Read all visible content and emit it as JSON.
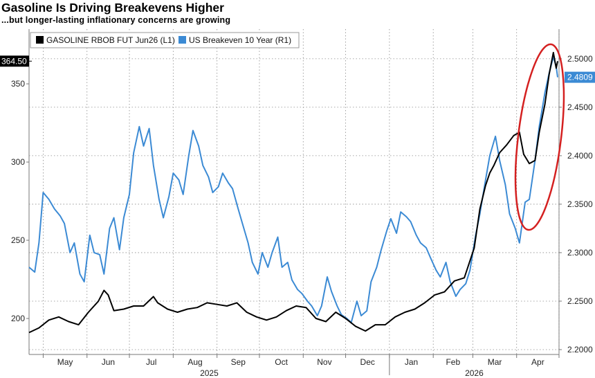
{
  "title": "Gasoline Is Driving Breakevens Higher",
  "subtitle": "...but longer-lasting inflationary concerns are growing",
  "colors": {
    "gasoline": "#000000",
    "breakeven": "#3b8ad4",
    "highlight_circle": "#d42020",
    "grid": "#8a8a8a"
  },
  "legend": {
    "gasoline_label": "GASOLINE RBOB FUT Jun26  (L1)",
    "breakeven_label": "US Breakeven 10 Year  (R1)"
  },
  "value_tags": {
    "gasoline_last": "364.50",
    "breakeven_last": "2.4809"
  },
  "x_axis": {
    "months": [
      "May",
      "Jun",
      "Jul",
      "Aug",
      "Sep",
      "Oct",
      "Nov",
      "Dec",
      "Jan",
      "Feb",
      "Mar",
      "Apr"
    ],
    "years": [
      "2025",
      "2026"
    ]
  },
  "chart_data": {
    "type": "line",
    "title": "Gasoline Is Driving Breakevens Higher",
    "subtitle": "...but longer-lasting inflationary concerns are growing",
    "x_range": [
      "2025-04-21",
      "2026-05-01"
    ],
    "grid": true,
    "legend_position": "top-left",
    "left_axis": {
      "ylim": [
        177,
        385
      ],
      "ticks": [
        200,
        250,
        300,
        350
      ]
    },
    "right_axis": {
      "ylim": [
        2.195,
        2.5306
      ],
      "ticks": [
        "2.2000",
        "2.2500",
        "2.3000",
        "2.3500",
        "2.4000",
        "2.4500",
        "2.5000"
      ]
    },
    "series": [
      {
        "name": "GASOLINE RBOB FUT Jun26",
        "axis": "left",
        "points": [
          [
            "2025-04-21",
            191
          ],
          [
            "2025-04-28",
            194
          ],
          [
            "2025-05-05",
            199
          ],
          [
            "2025-05-12",
            201
          ],
          [
            "2025-05-19",
            198
          ],
          [
            "2025-05-26",
            196
          ],
          [
            "2025-06-02",
            204
          ],
          [
            "2025-06-09",
            211
          ],
          [
            "2025-06-13",
            218
          ],
          [
            "2025-06-16",
            215
          ],
          [
            "2025-06-20",
            205
          ],
          [
            "2025-06-27",
            206
          ],
          [
            "2025-07-04",
            208
          ],
          [
            "2025-07-11",
            208
          ],
          [
            "2025-07-18",
            214
          ],
          [
            "2025-07-21",
            210
          ],
          [
            "2025-07-28",
            206
          ],
          [
            "2025-08-04",
            204
          ],
          [
            "2025-08-11",
            206
          ],
          [
            "2025-08-18",
            207
          ],
          [
            "2025-08-25",
            210
          ],
          [
            "2025-09-01",
            209
          ],
          [
            "2025-09-08",
            208
          ],
          [
            "2025-09-15",
            210
          ],
          [
            "2025-09-22",
            204
          ],
          [
            "2025-09-29",
            201
          ],
          [
            "2025-10-06",
            199
          ],
          [
            "2025-10-13",
            201
          ],
          [
            "2025-10-20",
            205
          ],
          [
            "2025-10-27",
            208
          ],
          [
            "2025-11-03",
            207
          ],
          [
            "2025-11-10",
            200
          ],
          [
            "2025-11-17",
            198
          ],
          [
            "2025-11-24",
            204
          ],
          [
            "2025-12-01",
            200
          ],
          [
            "2025-12-08",
            195
          ],
          [
            "2025-12-15",
            192
          ],
          [
            "2025-12-22",
            196
          ],
          [
            "2025-12-29",
            196
          ],
          [
            "2026-01-05",
            201
          ],
          [
            "2026-01-12",
            204
          ],
          [
            "2026-01-19",
            206
          ],
          [
            "2026-01-26",
            210
          ],
          [
            "2026-02-02",
            215
          ],
          [
            "2026-02-09",
            217
          ],
          [
            "2026-02-16",
            224
          ],
          [
            "2026-02-23",
            226
          ],
          [
            "2026-03-02",
            245
          ],
          [
            "2026-03-06",
            270
          ],
          [
            "2026-03-10",
            285
          ],
          [
            "2026-03-13",
            293
          ],
          [
            "2026-03-16",
            298
          ],
          [
            "2026-03-20",
            306
          ],
          [
            "2026-03-25",
            311
          ],
          [
            "2026-03-30",
            317
          ],
          [
            "2026-04-03",
            319
          ],
          [
            "2026-04-06",
            305
          ],
          [
            "2026-04-10",
            299
          ],
          [
            "2026-04-14",
            301
          ],
          [
            "2026-04-17",
            319
          ],
          [
            "2026-04-21",
            337
          ],
          [
            "2026-04-24",
            356
          ],
          [
            "2026-04-27",
            370
          ],
          [
            "2026-04-29",
            360
          ],
          [
            "2026-04-30",
            364.5
          ]
        ]
      },
      {
        "name": "US Breakeven 10 Year",
        "axis": "right",
        "points": [
          [
            "2025-04-21",
            2.285
          ],
          [
            "2025-04-25",
            2.28
          ],
          [
            "2025-04-28",
            2.31
          ],
          [
            "2025-05-01",
            2.362
          ],
          [
            "2025-05-05",
            2.355
          ],
          [
            "2025-05-09",
            2.345
          ],
          [
            "2025-05-13",
            2.338
          ],
          [
            "2025-05-16",
            2.33
          ],
          [
            "2025-05-20",
            2.3
          ],
          [
            "2025-05-23",
            2.31
          ],
          [
            "2025-05-27",
            2.278
          ],
          [
            "2025-05-30",
            2.27
          ],
          [
            "2025-06-03",
            2.318
          ],
          [
            "2025-06-06",
            2.3
          ],
          [
            "2025-06-10",
            2.298
          ],
          [
            "2025-06-13",
            2.278
          ],
          [
            "2025-06-17",
            2.325
          ],
          [
            "2025-06-20",
            2.336
          ],
          [
            "2025-06-24",
            2.303
          ],
          [
            "2025-06-27",
            2.336
          ],
          [
            "2025-07-01",
            2.36
          ],
          [
            "2025-07-04",
            2.403
          ],
          [
            "2025-07-08",
            2.43
          ],
          [
            "2025-07-11",
            2.41
          ],
          [
            "2025-07-15",
            2.428
          ],
          [
            "2025-07-18",
            2.39
          ],
          [
            "2025-07-22",
            2.355
          ],
          [
            "2025-07-25",
            2.336
          ],
          [
            "2025-07-29",
            2.358
          ],
          [
            "2025-08-01",
            2.382
          ],
          [
            "2025-08-05",
            2.375
          ],
          [
            "2025-08-08",
            2.36
          ],
          [
            "2025-08-12",
            2.4
          ],
          [
            "2025-08-15",
            2.426
          ],
          [
            "2025-08-19",
            2.41
          ],
          [
            "2025-08-22",
            2.39
          ],
          [
            "2025-08-26",
            2.378
          ],
          [
            "2025-08-29",
            2.362
          ],
          [
            "2025-09-02",
            2.368
          ],
          [
            "2025-09-05",
            2.382
          ],
          [
            "2025-09-09",
            2.372
          ],
          [
            "2025-09-12",
            2.366
          ],
          [
            "2025-09-16",
            2.345
          ],
          [
            "2025-09-19",
            2.33
          ],
          [
            "2025-09-23",
            2.31
          ],
          [
            "2025-09-26",
            2.29
          ],
          [
            "2025-09-30",
            2.278
          ],
          [
            "2025-10-03",
            2.3
          ],
          [
            "2025-10-07",
            2.285
          ],
          [
            "2025-10-10",
            2.3
          ],
          [
            "2025-10-14",
            2.316
          ],
          [
            "2025-10-17",
            2.285
          ],
          [
            "2025-10-21",
            2.29
          ],
          [
            "2025-10-24",
            2.272
          ],
          [
            "2025-10-28",
            2.262
          ],
          [
            "2025-10-31",
            2.258
          ],
          [
            "2025-11-04",
            2.25
          ],
          [
            "2025-11-07",
            2.245
          ],
          [
            "2025-11-11",
            2.235
          ],
          [
            "2025-11-14",
            2.245
          ],
          [
            "2025-11-18",
            2.275
          ],
          [
            "2025-11-21",
            2.26
          ],
          [
            "2025-11-25",
            2.245
          ],
          [
            "2025-11-28",
            2.236
          ],
          [
            "2025-12-02",
            2.232
          ],
          [
            "2025-12-05",
            2.228
          ],
          [
            "2025-12-09",
            2.25
          ],
          [
            "2025-12-12",
            2.235
          ],
          [
            "2025-12-16",
            2.24
          ],
          [
            "2025-12-19",
            2.27
          ],
          [
            "2025-12-23",
            2.285
          ],
          [
            "2025-12-26",
            2.302
          ],
          [
            "2025-12-30",
            2.322
          ],
          [
            "2026-01-02",
            2.335
          ],
          [
            "2026-01-06",
            2.32
          ],
          [
            "2026-01-09",
            2.342
          ],
          [
            "2026-01-13",
            2.337
          ],
          [
            "2026-01-16",
            2.332
          ],
          [
            "2026-01-20",
            2.318
          ],
          [
            "2026-01-23",
            2.31
          ],
          [
            "2026-01-27",
            2.305
          ],
          [
            "2026-01-30",
            2.295
          ],
          [
            "2026-02-03",
            2.282
          ],
          [
            "2026-02-06",
            2.275
          ],
          [
            "2026-02-10",
            2.29
          ],
          [
            "2026-02-13",
            2.27
          ],
          [
            "2026-02-17",
            2.255
          ],
          [
            "2026-02-20",
            2.262
          ],
          [
            "2026-02-24",
            2.268
          ],
          [
            "2026-02-27",
            2.282
          ],
          [
            "2026-03-03",
            2.318
          ],
          [
            "2026-03-06",
            2.34
          ],
          [
            "2026-03-10",
            2.375
          ],
          [
            "2026-03-13",
            2.4
          ],
          [
            "2026-03-17",
            2.42
          ],
          [
            "2026-03-20",
            2.395
          ],
          [
            "2026-03-24",
            2.37
          ],
          [
            "2026-03-27",
            2.34
          ],
          [
            "2026-03-31",
            2.325
          ],
          [
            "2026-04-03",
            2.31
          ],
          [
            "2026-04-07",
            2.352
          ],
          [
            "2026-04-10",
            2.355
          ],
          [
            "2026-04-14",
            2.395
          ],
          [
            "2026-04-17",
            2.43
          ],
          [
            "2026-04-21",
            2.465
          ],
          [
            "2026-04-24",
            2.485
          ],
          [
            "2026-04-27",
            2.502
          ],
          [
            "2026-04-29",
            2.492
          ],
          [
            "2026-04-30",
            2.4809
          ]
        ]
      }
    ]
  }
}
